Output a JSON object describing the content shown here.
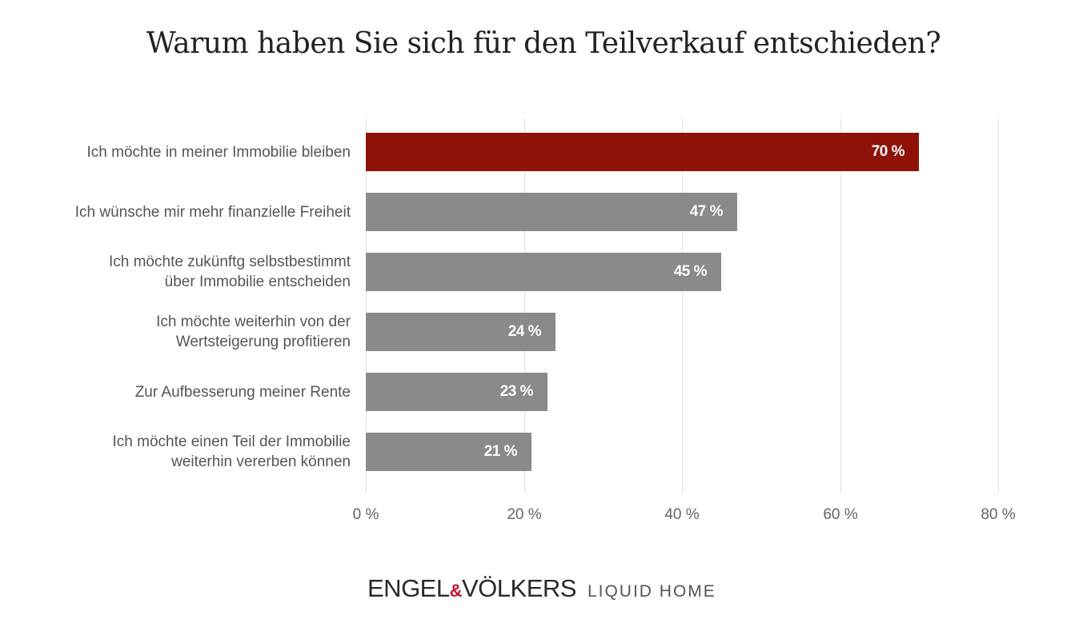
{
  "chart_data": {
    "type": "bar",
    "orientation": "horizontal",
    "title": "Warum haben Sie sich für den Teilverkauf entschieden?",
    "categories": [
      "Ich möchte in meiner Immobilie bleiben",
      "Ich wünsche mir mehr finanzielle Freiheit",
      "Ich möchte zukünftg selbstbestimmt\nüber Immobilie entscheiden",
      "Ich möchte weiterhin von der\nWertsteigerung profitieren",
      "Zur Aufbesserung meiner Rente",
      "Ich möchte einen Teil der Immobilie\nweiterhin vererben können"
    ],
    "values": [
      70,
      47,
      45,
      24,
      23,
      21
    ],
    "value_labels": [
      "70 %",
      "47 %",
      "45 %",
      "24 %",
      "23 %",
      "21 %"
    ],
    "xlim": [
      0,
      80
    ],
    "xticks": [
      0,
      20,
      40,
      60,
      80
    ],
    "xtick_labels": [
      "0 %",
      "20 %",
      "40 %",
      "60 %",
      "80 %"
    ],
    "grid": "vertical",
    "highlight_color": "#8f1208",
    "bar_color": "#8a8a8a"
  },
  "logo": {
    "brand_left": "ENGEL",
    "ampersand": "&",
    "brand_right": "VÖLKERS",
    "sub": "LIQUID HOME"
  }
}
